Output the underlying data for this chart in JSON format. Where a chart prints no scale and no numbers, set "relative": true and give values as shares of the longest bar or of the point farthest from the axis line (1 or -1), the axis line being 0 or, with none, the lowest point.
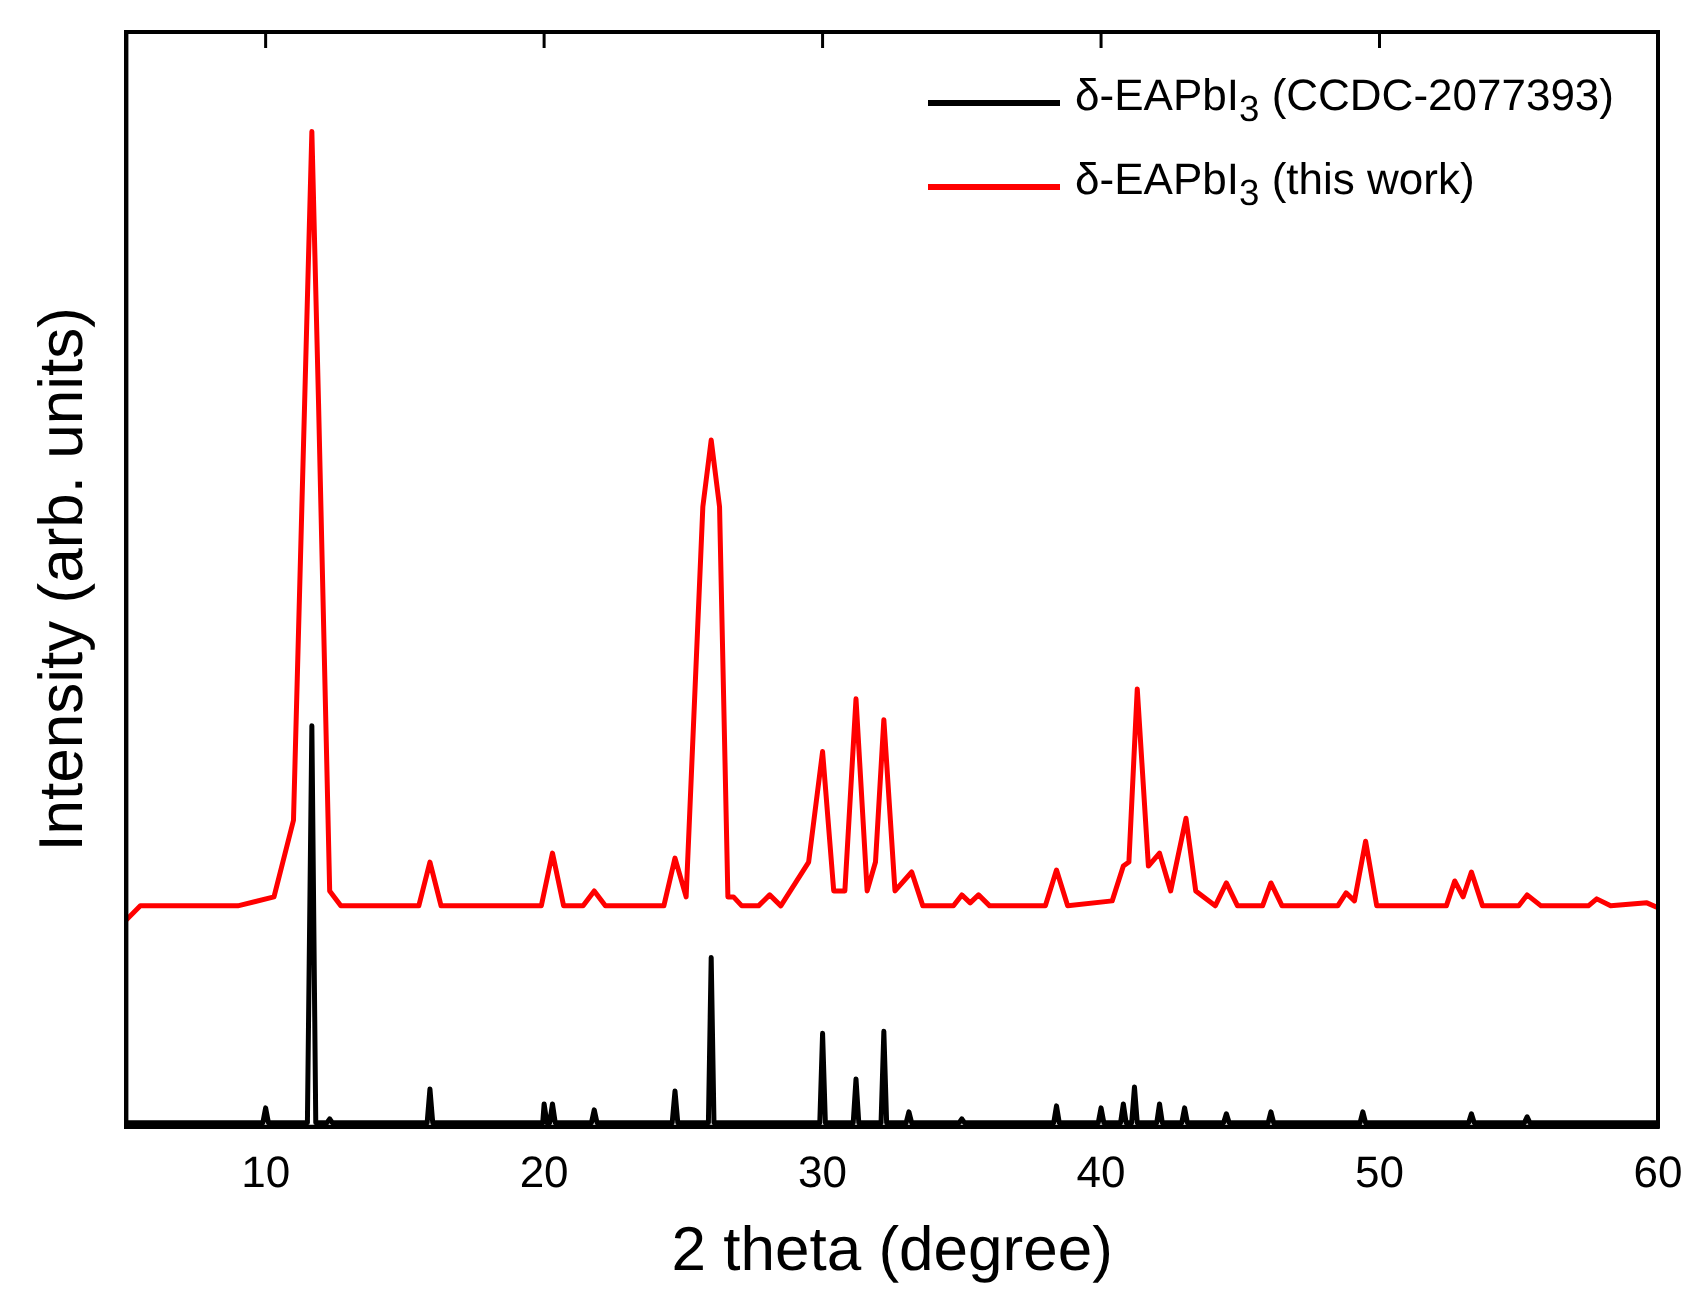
{
  "chart_data": {
    "type": "line",
    "xlabel": "2 theta (degree)",
    "ylabel": "Intensity (arb. units)",
    "relative": true,
    "xlim": [
      5,
      60
    ],
    "xticks": [
      10,
      20,
      30,
      40,
      50,
      60
    ],
    "legend": "top right",
    "marker": "none",
    "grid": false,
    "series": [
      {
        "name": "δ-EAPbI$_{3}$ (CCDC-2077393)",
        "color": "#000000",
        "x": [
          5,
          9.9,
          10.0,
          10.1,
          11.5,
          11.66,
          11.8,
          12.2,
          12.3,
          12.4,
          15.8,
          15.9,
          16.0,
          19.95,
          20.0,
          20.1,
          20.2,
          20.3,
          20.4,
          21.7,
          21.8,
          21.9,
          24.6,
          24.7,
          24.8,
          25.9,
          26.0,
          26.1,
          29.9,
          30.0,
          30.1,
          31.1,
          31.2,
          31.3,
          32.1,
          32.2,
          32.3,
          33.0,
          33.1,
          33.2,
          34.9,
          35.0,
          35.1,
          38.3,
          38.4,
          38.5,
          39.9,
          40.0,
          40.1,
          40.7,
          40.8,
          40.9,
          41.1,
          41.2,
          41.3,
          42.0,
          42.1,
          42.2,
          42.9,
          43.0,
          43.1,
          44.4,
          44.5,
          44.6,
          46.0,
          46.1,
          46.2,
          49.3,
          49.4,
          49.5,
          53.2,
          53.3,
          53.4,
          55.2,
          55.3,
          55.4,
          60
        ],
        "values": [
          0.004,
          0.004,
          0.019,
          0.004,
          0.004,
          0.403,
          0.004,
          0.004,
          0.008,
          0.004,
          0.004,
          0.038,
          0.004,
          0.004,
          0.023,
          0.004,
          0.004,
          0.023,
          0.004,
          0.004,
          0.017,
          0.004,
          0.004,
          0.036,
          0.004,
          0.004,
          0.17,
          0.004,
          0.004,
          0.094,
          0.004,
          0.004,
          0.048,
          0.004,
          0.004,
          0.096,
          0.004,
          0.004,
          0.015,
          0.004,
          0.004,
          0.008,
          0.004,
          0.004,
          0.021,
          0.004,
          0.004,
          0.019,
          0.004,
          0.004,
          0.023,
          0.004,
          0.004,
          0.04,
          0.004,
          0.004,
          0.023,
          0.004,
          0.004,
          0.019,
          0.004,
          0.004,
          0.013,
          0.004,
          0.004,
          0.015,
          0.004,
          0.004,
          0.015,
          0.004,
          0.004,
          0.013,
          0.004,
          0.004,
          0.01,
          0.004,
          0.004
        ]
      },
      {
        "name": "δ-EAPbI$_{3}$ (this work)",
        "color": "#ff0000",
        "x": [
          5,
          5.5,
          9.0,
          10.3,
          11.0,
          11.4,
          11.66,
          11.9,
          12.3,
          12.7,
          15.5,
          15.9,
          16.3,
          19.9,
          20.3,
          20.7,
          21.4,
          21.8,
          22.2,
          24.3,
          24.7,
          25.1,
          25.7,
          26.0,
          26.3,
          26.6,
          26.8,
          27.1,
          27.7,
          28.1,
          28.5,
          29.5,
          30.0,
          30.4,
          30.8,
          31.2,
          31.6,
          31.9,
          32.2,
          32.6,
          33.2,
          33.6,
          34.7,
          35.0,
          35.3,
          35.6,
          36.0,
          38.0,
          38.4,
          38.8,
          40.4,
          40.8,
          41.0,
          41.3,
          41.7,
          42.1,
          42.5,
          43.05,
          43.4,
          44.1,
          44.5,
          44.9,
          45.8,
          46.1,
          46.5,
          48.5,
          48.8,
          49.1,
          49.5,
          49.9,
          52.4,
          52.7,
          53.0,
          53.3,
          53.7,
          55.0,
          55.3,
          55.8,
          57.5,
          57.8,
          58.3,
          59.6,
          60
        ],
        "values": [
          0.208,
          0.222,
          0.222,
          0.231,
          0.308,
          0.727,
          1.0,
          0.727,
          0.237,
          0.222,
          0.222,
          0.266,
          0.222,
          0.222,
          0.275,
          0.222,
          0.222,
          0.237,
          0.222,
          0.222,
          0.27,
          0.231,
          0.623,
          0.69,
          0.623,
          0.231,
          0.231,
          0.222,
          0.222,
          0.233,
          0.222,
          0.266,
          0.377,
          0.237,
          0.237,
          0.43,
          0.237,
          0.266,
          0.409,
          0.237,
          0.256,
          0.222,
          0.222,
          0.233,
          0.225,
          0.233,
          0.222,
          0.222,
          0.258,
          0.222,
          0.227,
          0.262,
          0.266,
          0.44,
          0.262,
          0.275,
          0.237,
          0.31,
          0.237,
          0.222,
          0.245,
          0.222,
          0.222,
          0.245,
          0.222,
          0.222,
          0.235,
          0.227,
          0.287,
          0.222,
          0.222,
          0.247,
          0.231,
          0.256,
          0.222,
          0.222,
          0.233,
          0.222,
          0.222,
          0.229,
          0.222,
          0.225,
          0.22
        ]
      }
    ]
  }
}
